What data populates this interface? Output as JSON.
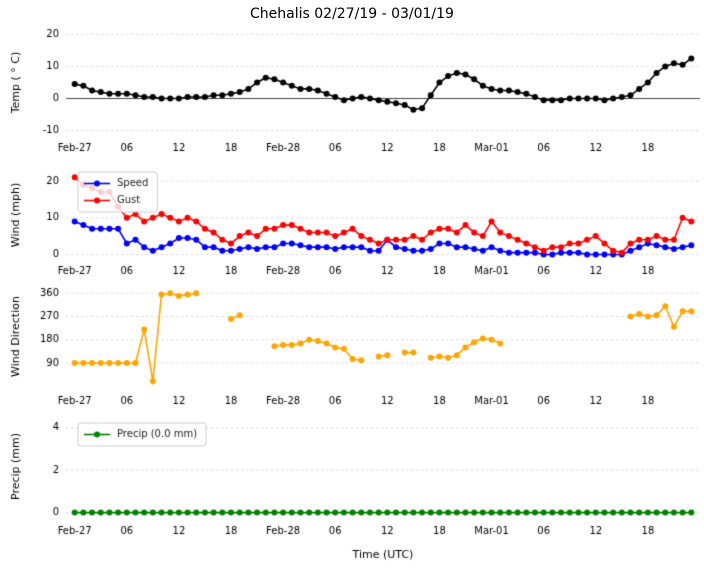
{
  "title": "Chehalis 02/27/19 - 03/01/19",
  "xlabel": "Time (UTC)",
  "chart_data": {
    "type": "line",
    "x_unit": "hours since Feb-27 00:00 UTC",
    "x_range": [
      -1,
      72
    ],
    "x_ticks": [
      {
        "h": 0,
        "label": "Feb-27"
      },
      {
        "h": 6,
        "label": "06"
      },
      {
        "h": 12,
        "label": "12"
      },
      {
        "h": 18,
        "label": "18"
      },
      {
        "h": 24,
        "label": "Feb-28"
      },
      {
        "h": 30,
        "label": "06"
      },
      {
        "h": 36,
        "label": "12"
      },
      {
        "h": 42,
        "label": "18"
      },
      {
        "h": 48,
        "label": "Mar-01"
      },
      {
        "h": 54,
        "label": "06"
      },
      {
        "h": 60,
        "label": "12"
      },
      {
        "h": 66,
        "label": "18"
      }
    ],
    "subplots": [
      {
        "ylabel": "Temp ( ° C)",
        "ylim": [
          -12,
          22
        ],
        "yticks": [
          -10,
          0,
          10,
          20
        ],
        "zero_line": true,
        "legend": false,
        "series": [
          {
            "name": "Temp",
            "color": "#000000",
            "values": [
              4.5,
              4,
              2.5,
              2,
              1.5,
              1.5,
              1.5,
              1,
              0.5,
              0.5,
              0,
              0,
              0,
              0.5,
              0.5,
              0.5,
              1,
              1,
              1.5,
              2,
              3,
              5,
              6.5,
              6,
              5,
              4,
              3,
              3,
              2.5,
              1.5,
              0.5,
              -0.5,
              0,
              0.5,
              0,
              -0.5,
              -1,
              -1.5,
              -2,
              -3.5,
              -3,
              1,
              5,
              7,
              8,
              7.5,
              6,
              4,
              3,
              2.5,
              2.5,
              2,
              1.5,
              0.5,
              -0.5,
              -0.5,
              -0.5,
              0,
              0,
              0,
              0,
              -0.5,
              0,
              0.5,
              1,
              3,
              5,
              8,
              10,
              11,
              10.5,
              12.5
            ]
          }
        ]
      },
      {
        "ylabel": "Wind (mph)",
        "ylim": [
          -1.5,
          23
        ],
        "yticks": [
          0,
          10,
          20
        ],
        "zero_line": false,
        "legend": true,
        "series": [
          {
            "name": "Speed",
            "color": "#0000ff",
            "values": [
              9,
              8,
              7,
              7,
              7,
              7,
              3,
              4,
              2,
              1,
              2,
              3,
              4.5,
              4.5,
              4,
              2,
              2,
              1,
              1,
              1.5,
              2,
              1.5,
              2,
              2,
              3,
              3,
              2.5,
              2,
              2,
              2,
              1.5,
              2,
              2,
              2,
              1,
              1,
              4,
              2,
              1.5,
              1,
              1,
              1.5,
              3,
              3,
              2,
              2,
              1.5,
              1,
              2,
              1,
              0.5,
              0.5,
              0.5,
              0.5,
              0,
              0,
              0.5,
              0.5,
              0.5,
              0,
              0,
              0,
              0,
              0,
              1,
              2,
              3,
              2.5,
              2,
              1.5,
              2,
              2.5
            ]
          },
          {
            "name": "Gust",
            "color": "#ff0000",
            "values": [
              21,
              19,
              18,
              17,
              17,
              13,
              10,
              11,
              9,
              10,
              11,
              10,
              9,
              10,
              9,
              7,
              6,
              4,
              3,
              5,
              6,
              5,
              7,
              7,
              8,
              8,
              7,
              6,
              6,
              6,
              5,
              6,
              7,
              5,
              4,
              3,
              4,
              4,
              4,
              5,
              4,
              6,
              7,
              7,
              6,
              8,
              6,
              5,
              9,
              6,
              5,
              4,
              3,
              2,
              1,
              2,
              2,
              3,
              3,
              4,
              5,
              3,
              1,
              0.5,
              3,
              4,
              4,
              5,
              4,
              4,
              10,
              9
            ]
          }
        ]
      },
      {
        "ylabel": "Wind Direction",
        "ylim": [
          -15,
          400
        ],
        "yticks": [
          90,
          180,
          270,
          360
        ],
        "zero_line": false,
        "legend": false,
        "series": [
          {
            "name": "Direction",
            "color": "#ffa500",
            "values": [
              90,
              90,
              90,
              90,
              90,
              90,
              90,
              90,
              220,
              20,
              355,
              360,
              350,
              355,
              360,
              null,
              null,
              null,
              260,
              275,
              null,
              null,
              null,
              155,
              160,
              160,
              165,
              180,
              175,
              165,
              150,
              145,
              105,
              100,
              null,
              115,
              120,
              null,
              130,
              130,
              null,
              110,
              115,
              110,
              120,
              150,
              170,
              185,
              180,
              165,
              null,
              null,
              null,
              null,
              null,
              null,
              null,
              null,
              null,
              null,
              null,
              null,
              null,
              null,
              270,
              280,
              270,
              275,
              310,
              230,
              290,
              290
            ]
          }
        ]
      },
      {
        "ylabel": "Precip (mm)",
        "ylim": [
          -0.35,
          4.7
        ],
        "yticks": [
          0,
          2,
          4
        ],
        "zero_line": false,
        "legend": true,
        "series": [
          {
            "name": "Precip (0.0 mm)",
            "color": "#008000",
            "values": [
              0,
              0,
              0,
              0,
              0,
              0,
              0,
              0,
              0,
              0,
              0,
              0,
              0,
              0,
              0,
              0,
              0,
              0,
              0,
              0,
              0,
              0,
              0,
              0,
              0,
              0,
              0,
              0,
              0,
              0,
              0,
              0,
              0,
              0,
              0,
              0,
              0,
              0,
              0,
              0,
              0,
              0,
              0,
              0,
              0,
              0,
              0,
              0,
              0,
              0,
              0,
              0,
              0,
              0,
              0,
              0,
              0,
              0,
              0,
              0,
              0,
              0,
              0,
              0,
              0,
              0,
              0,
              0,
              0,
              0,
              0,
              0
            ]
          }
        ]
      }
    ]
  }
}
